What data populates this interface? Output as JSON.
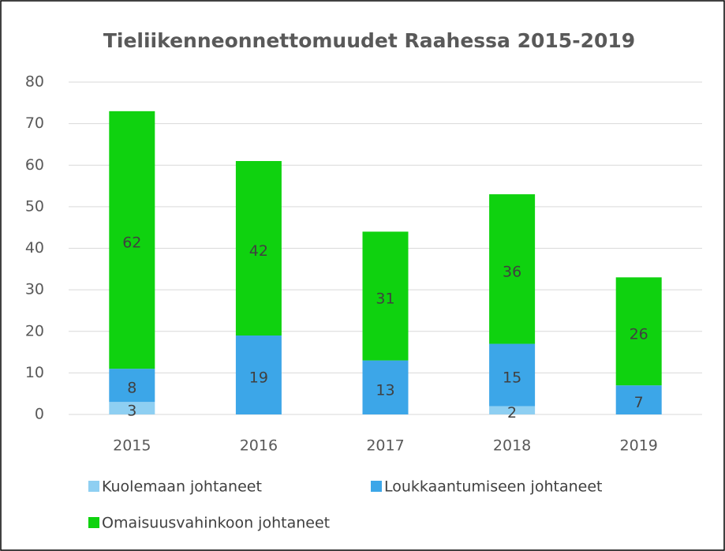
{
  "chart_data": {
    "type": "stacked_bar",
    "title": "Tieliikenneonnettomuudet Raahessa 2015-2019",
    "categories": [
      "2015",
      "2016",
      "2017",
      "2018",
      "2019"
    ],
    "series": [
      {
        "name": "Kuolemaan johtaneet",
        "color": "#8ecff2",
        "values": [
          3,
          0,
          0,
          2,
          0
        ]
      },
      {
        "name": "Loukkaantumiseen johtaneet",
        "color": "#3ca6e8",
        "values": [
          8,
          19,
          13,
          15,
          7
        ]
      },
      {
        "name": "Omaisuusvahinkoon johtaneet",
        "color": "#0fd20f",
        "values": [
          62,
          42,
          31,
          36,
          26
        ]
      }
    ],
    "ylim": [
      0,
      80
    ],
    "yticks": [
      0,
      10,
      20,
      30,
      40,
      50,
      60,
      70,
      80
    ],
    "grid": true,
    "legend": "bottom"
  }
}
